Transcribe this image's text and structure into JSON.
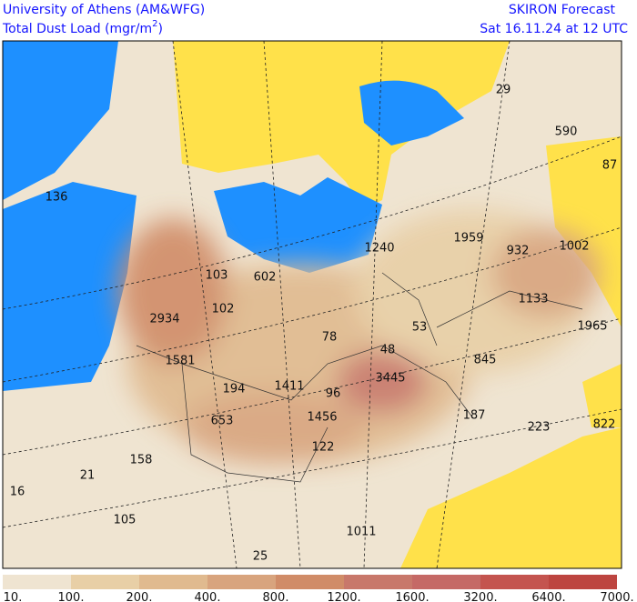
{
  "header": {
    "institution": "University of Athens (AM&WFG)",
    "title_prefix": "Total Dust Load (mgr/m",
    "title_sup": "2",
    "title_suffix": ")",
    "model": "SKIRON Forecast",
    "date": "Sat 16.11.24 at 12 UTC"
  },
  "map_labels": [
    "29",
    "590",
    "87",
    "136",
    "1959",
    "932",
    "1002",
    "1240",
    "103",
    "602",
    "1133",
    "2934",
    "102",
    "1965",
    "53",
    "78",
    "48",
    "845",
    "1581",
    "3445",
    "194",
    "1411",
    "96",
    "1456",
    "653",
    "187",
    "223",
    "822",
    "122",
    "158",
    "21",
    "16",
    "105",
    "1011",
    "25"
  ],
  "colorbar": {
    "labels": [
      "10.",
      "100.",
      "200.",
      "400.",
      "800.",
      "1200.",
      "1600.",
      "3200.",
      "6400.",
      "7000."
    ],
    "colors": [
      "#efe4d1",
      "#e8cfa6",
      "#e0ba8f",
      "#d8a47e",
      "#d08c68",
      "#c8786b",
      "#c56966",
      "#c4544f",
      "#bd4540"
    ]
  }
}
